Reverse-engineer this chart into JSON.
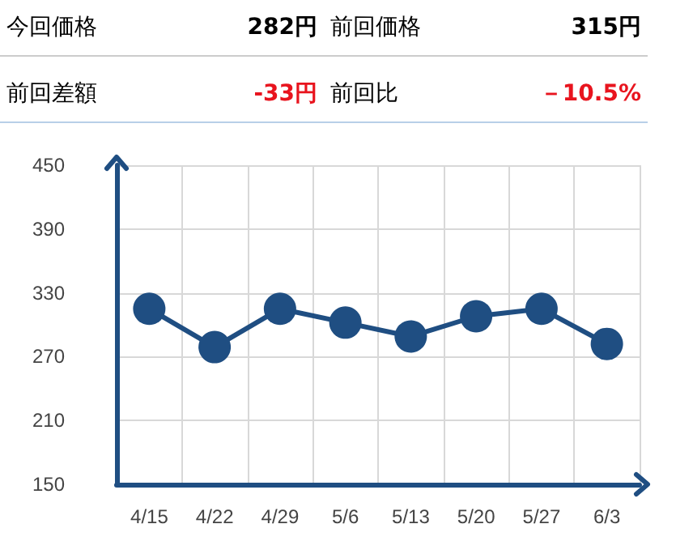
{
  "chart_data": {
    "type": "line",
    "annotations": [
      "今回価格",
      "282円",
      "前回価格",
      "315円",
      "前回差額",
      "-33円",
      "前回比",
      "－10.5%"
    ],
    "categories": [
      "4/15",
      "4/22",
      "4/29",
      "5/6",
      "5/13",
      "5/20",
      "5/27",
      "6/3"
    ],
    "series": [
      {
        "color": "#1f4e82",
        "values": [
          315,
          279,
          315,
          302,
          289,
          308,
          315,
          282
        ]
      }
    ],
    "ylim": [
      150,
      450
    ],
    "yticks": [
      150,
      210,
      270,
      330,
      390,
      450
    ],
    "grid": true,
    "marker": "circle",
    "line_style": "solid"
  }
}
